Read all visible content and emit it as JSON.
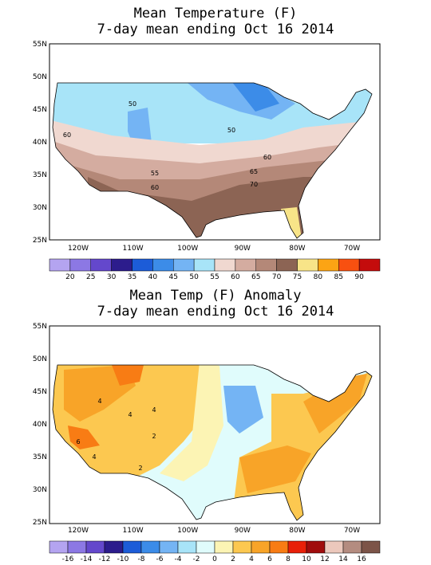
{
  "panels": [
    {
      "title_lines": [
        "Mean Temperature (F)",
        "7-day mean ending Oct 16 2014"
      ],
      "lat_labels": [
        "55N",
        "50N",
        "45N",
        "40N",
        "35N",
        "30N",
        "25N"
      ],
      "lon_labels": [
        "120W",
        "110W",
        "100W",
        "90W",
        "80W",
        "70W"
      ],
      "contour_labels": [
        "50",
        "50",
        "60",
        "60",
        "55",
        "65",
        "60",
        "70"
      ],
      "colorbar": {
        "labels": [
          "20",
          "25",
          "30",
          "35",
          "40",
          "45",
          "50",
          "55",
          "60",
          "65",
          "70",
          "75",
          "80",
          "85",
          "90"
        ],
        "colors": [
          "#b4a4f0",
          "#8c78e4",
          "#6448cc",
          "#2c1c8c",
          "#1c5cd8",
          "#3c8ce8",
          "#74b4f4",
          "#a8e4f8",
          "#f0d8d0",
          "#d4aca0",
          "#b48878",
          "#8c6454",
          "#f8e488",
          "#fca414",
          "#f85010",
          "#c40c0c"
        ]
      }
    },
    {
      "title_lines": [
        "Mean Temp (F) Anomaly",
        "7-day mean ending Oct 16 2014"
      ],
      "lat_labels": [
        "55N",
        "50N",
        "45N",
        "40N",
        "35N",
        "30N",
        "25N"
      ],
      "lon_labels": [
        "120W",
        "110W",
        "100W",
        "90W",
        "80W",
        "70W"
      ],
      "contour_labels": [
        "4",
        "4",
        "4",
        "6",
        "2",
        "2",
        "4"
      ],
      "colorbar": {
        "labels": [
          "-16",
          "-14",
          "-12",
          "-10",
          "-8",
          "-6",
          "-4",
          "-2",
          "0",
          "2",
          "4",
          "6",
          "8",
          "10",
          "12",
          "14",
          "16"
        ],
        "colors": [
          "#b4a4f0",
          "#8c78e4",
          "#6448cc",
          "#2c1c8c",
          "#1c5cd8",
          "#3c8ce8",
          "#74b4f4",
          "#a8e4f8",
          "#e0fcfc",
          "#fcf4b4",
          "#fcc850",
          "#f8a428",
          "#f87c14",
          "#e82008",
          "#a00c0c",
          "#ecc8bc",
          "#b48c80",
          "#7c5448"
        ]
      }
    }
  ]
}
